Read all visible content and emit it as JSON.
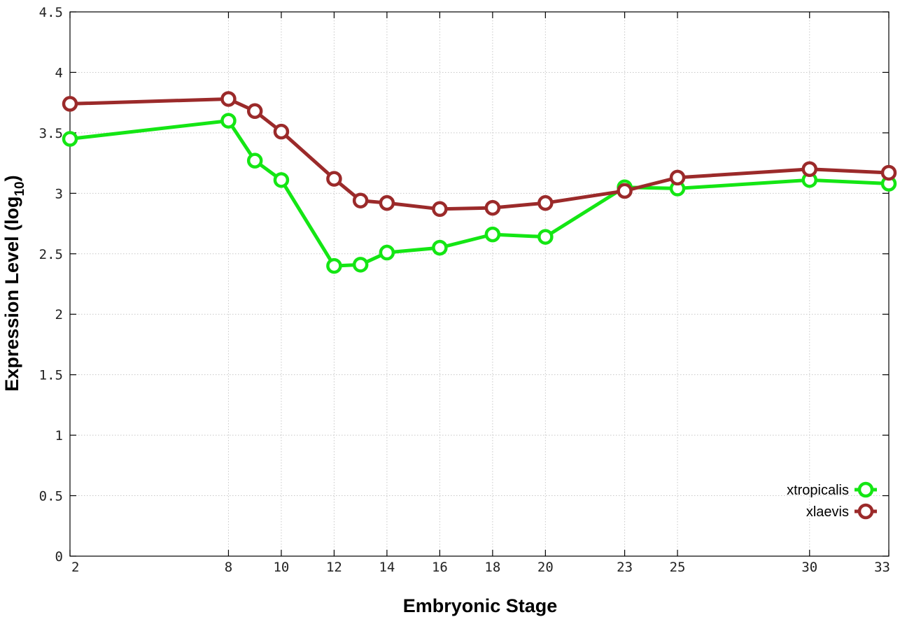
{
  "chart_data": {
    "type": "line",
    "xlabel": "Embryonic Stage",
    "ylabel": {
      "main": "Expression Level (log",
      "subscript": "10",
      "close": ")"
    },
    "ylim": [
      0,
      4.5
    ],
    "grid": true,
    "legend_position": "bottom-right",
    "categories": [
      "2",
      "8",
      "9",
      "10",
      "12",
      "13",
      "14",
      "16",
      "18",
      "20",
      "23",
      "25",
      "30",
      "33"
    ],
    "x_tick_labels": [
      "2",
      "8",
      "10",
      "12",
      "14",
      "16",
      "18",
      "20",
      "23",
      "25",
      "30",
      "33"
    ],
    "y_tick_labels": [
      "0",
      "0.5",
      "1",
      "1.5",
      "2",
      "2.5",
      "3",
      "3.5",
      "4",
      "4.5"
    ],
    "y_ticks": [
      0,
      0.5,
      1,
      1.5,
      2,
      2.5,
      3,
      3.5,
      4,
      4.5
    ],
    "series": [
      {
        "name": "xtropicalis",
        "color": "#14e614",
        "values": [
          3.45,
          3.6,
          3.27,
          3.11,
          2.4,
          2.41,
          2.51,
          2.55,
          2.66,
          2.64,
          3.05,
          3.04,
          3.11,
          3.08
        ]
      },
      {
        "name": "xlaevis",
        "color": "#9b2a2a",
        "values": [
          3.74,
          3.78,
          3.68,
          3.51,
          3.12,
          2.94,
          2.92,
          2.87,
          2.88,
          2.92,
          3.02,
          3.13,
          3.2,
          3.17
        ]
      }
    ]
  }
}
